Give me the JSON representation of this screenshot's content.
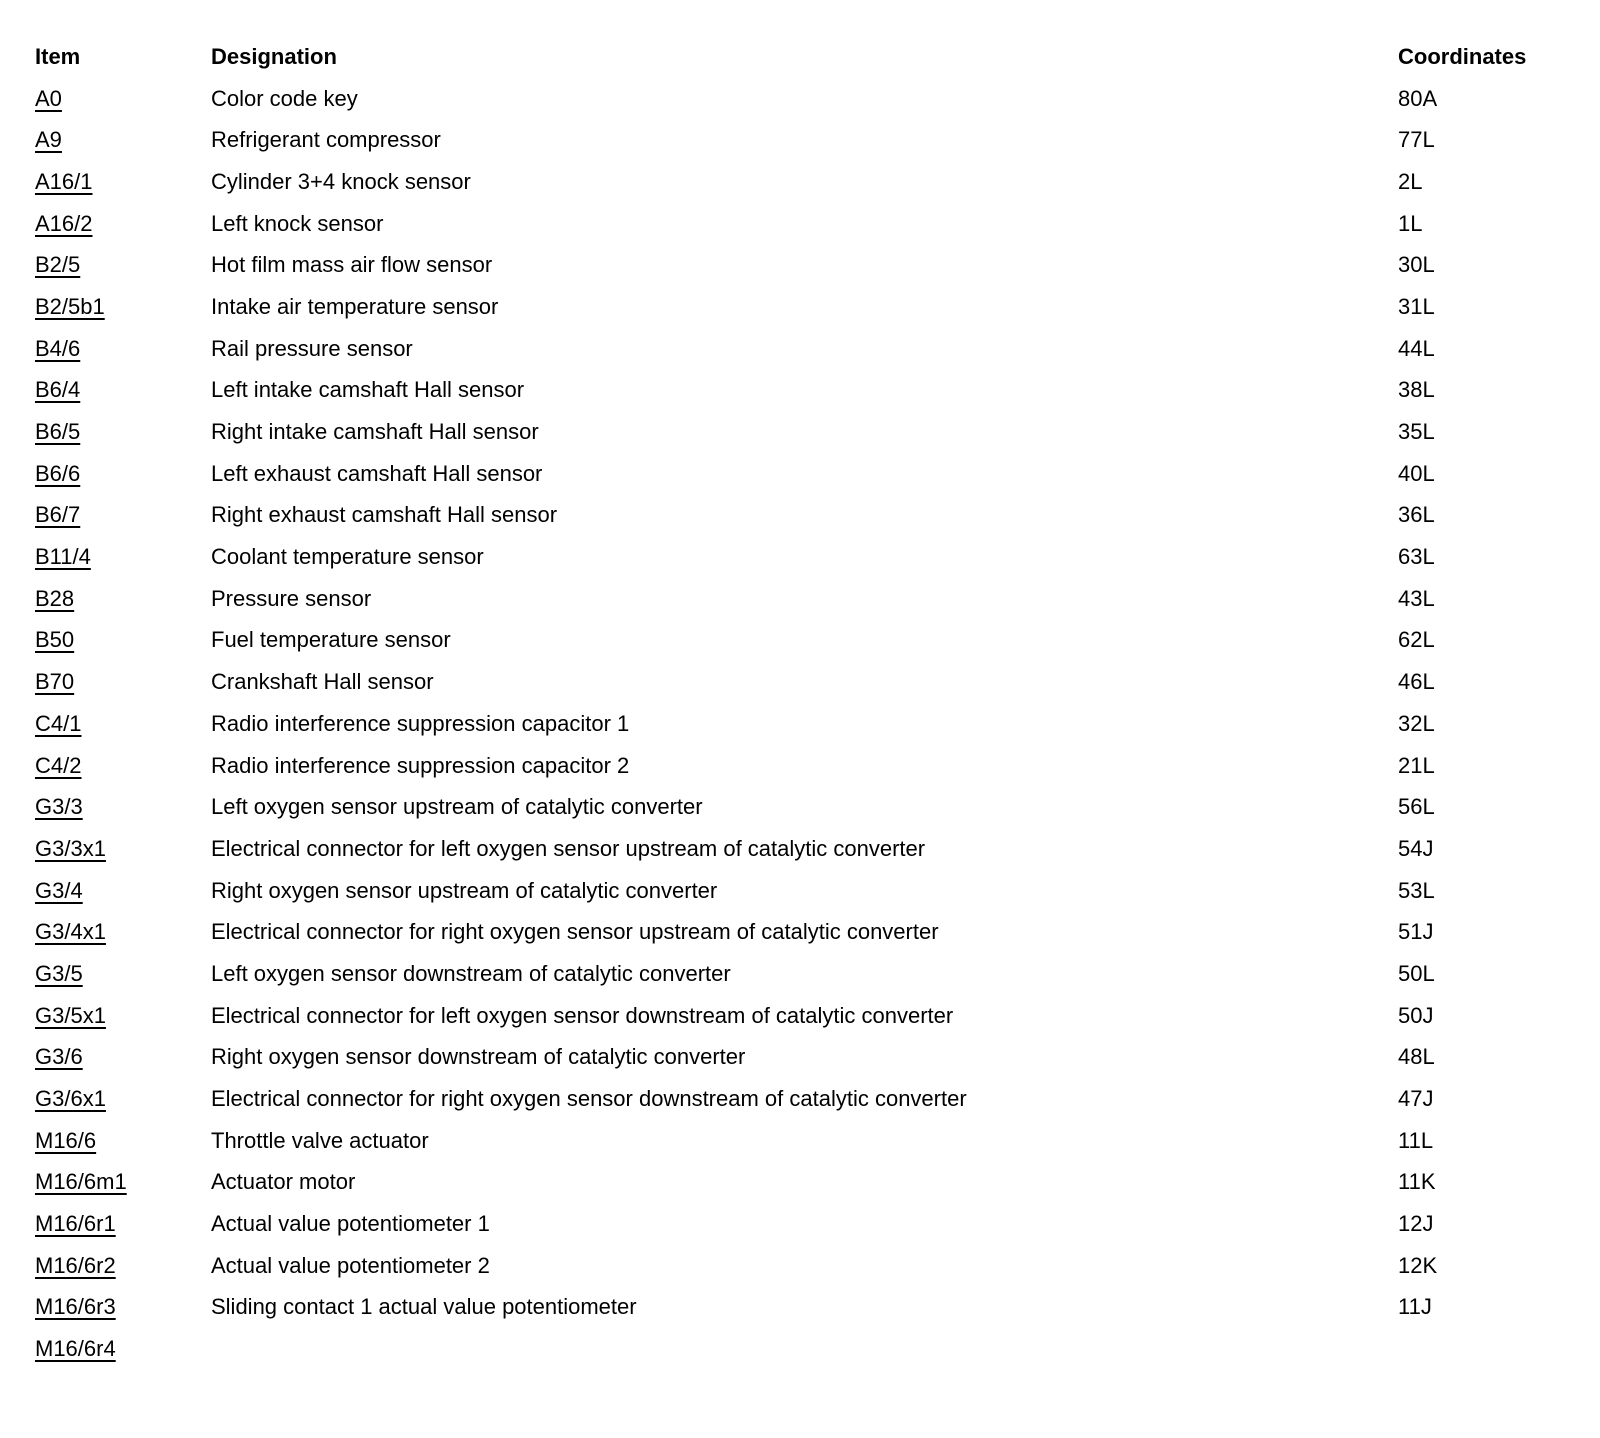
{
  "page": {
    "background_color": "#ffffff",
    "text_color": "#000000"
  },
  "table": {
    "headers": {
      "item": "Item",
      "designation": "Designation",
      "coordinates": "Coordinates"
    },
    "rows": [
      {
        "item": "A0",
        "designation": "Color code key",
        "coordinates": "80A"
      },
      {
        "item": "A9",
        "designation": "Refrigerant compressor",
        "coordinates": "77L"
      },
      {
        "item": "A16/1",
        "designation": "Cylinder 3+4 knock sensor",
        "coordinates": "2L"
      },
      {
        "item": "A16/2",
        "designation": "Left knock sensor",
        "coordinates": "1L"
      },
      {
        "item": "B2/5",
        "designation": "Hot film mass air flow sensor",
        "coordinates": "30L"
      },
      {
        "item": "B2/5b1",
        "designation": "Intake air temperature sensor",
        "coordinates": "31L"
      },
      {
        "item": "B4/6",
        "designation": "Rail pressure sensor",
        "coordinates": "44L"
      },
      {
        "item": "B6/4",
        "designation": "Left intake camshaft Hall sensor",
        "coordinates": "38L"
      },
      {
        "item": "B6/5",
        "designation": "Right intake camshaft Hall sensor",
        "coordinates": "35L"
      },
      {
        "item": "B6/6",
        "designation": "Left exhaust camshaft Hall sensor",
        "coordinates": "40L"
      },
      {
        "item": "B6/7",
        "designation": "Right exhaust camshaft Hall sensor",
        "coordinates": "36L"
      },
      {
        "item": "B11/4",
        "designation": "Coolant temperature sensor",
        "coordinates": "63L"
      },
      {
        "item": "B28",
        "designation": "Pressure sensor",
        "coordinates": "43L"
      },
      {
        "item": "B50",
        "designation": "Fuel temperature sensor",
        "coordinates": "62L"
      },
      {
        "item": "B70",
        "designation": "Crankshaft Hall sensor",
        "coordinates": "46L"
      },
      {
        "item": "C4/1",
        "designation": "Radio interference suppression capacitor 1",
        "coordinates": "32L"
      },
      {
        "item": "C4/2",
        "designation": "Radio interference suppression capacitor 2",
        "coordinates": "21L"
      },
      {
        "item": "G3/3",
        "designation": "Left oxygen sensor upstream of catalytic converter",
        "coordinates": "56L"
      },
      {
        "item": "G3/3x1",
        "designation": "Electrical connector for left oxygen sensor upstream of catalytic converter",
        "coordinates": "54J"
      },
      {
        "item": "G3/4",
        "designation": "Right oxygen sensor upstream of catalytic converter",
        "coordinates": "53L"
      },
      {
        "item": "G3/4x1",
        "designation": "Electrical connector for right oxygen sensor upstream of catalytic converter",
        "coordinates": "51J"
      },
      {
        "item": "G3/5",
        "designation": "Left oxygen sensor downstream of catalytic converter",
        "coordinates": "50L"
      },
      {
        "item": "G3/5x1",
        "designation": "Electrical connector for left oxygen sensor downstream of catalytic converter",
        "coordinates": "50J"
      },
      {
        "item": "G3/6",
        "designation": "Right oxygen sensor downstream of catalytic converter",
        "coordinates": "48L"
      },
      {
        "item": "G3/6x1",
        "designation": "Electrical connector for right oxygen sensor downstream of catalytic converter",
        "coordinates": "47J"
      },
      {
        "item": "M16/6",
        "designation": "Throttle valve actuator",
        "coordinates": "11L"
      },
      {
        "item": "M16/6m1",
        "designation": "Actuator motor",
        "coordinates": "11K"
      },
      {
        "item": "M16/6r1",
        "designation": "Actual value potentiometer 1",
        "coordinates": "12J"
      },
      {
        "item": "M16/6r2",
        "designation": "Actual value potentiometer 2",
        "coordinates": "12K"
      },
      {
        "item": "M16/6r3",
        "designation": "Sliding contact 1 actual value potentiometer",
        "coordinates": "11J"
      },
      {
        "item": "M16/6r4",
        "designation": "",
        "coordinates": ""
      }
    ]
  }
}
